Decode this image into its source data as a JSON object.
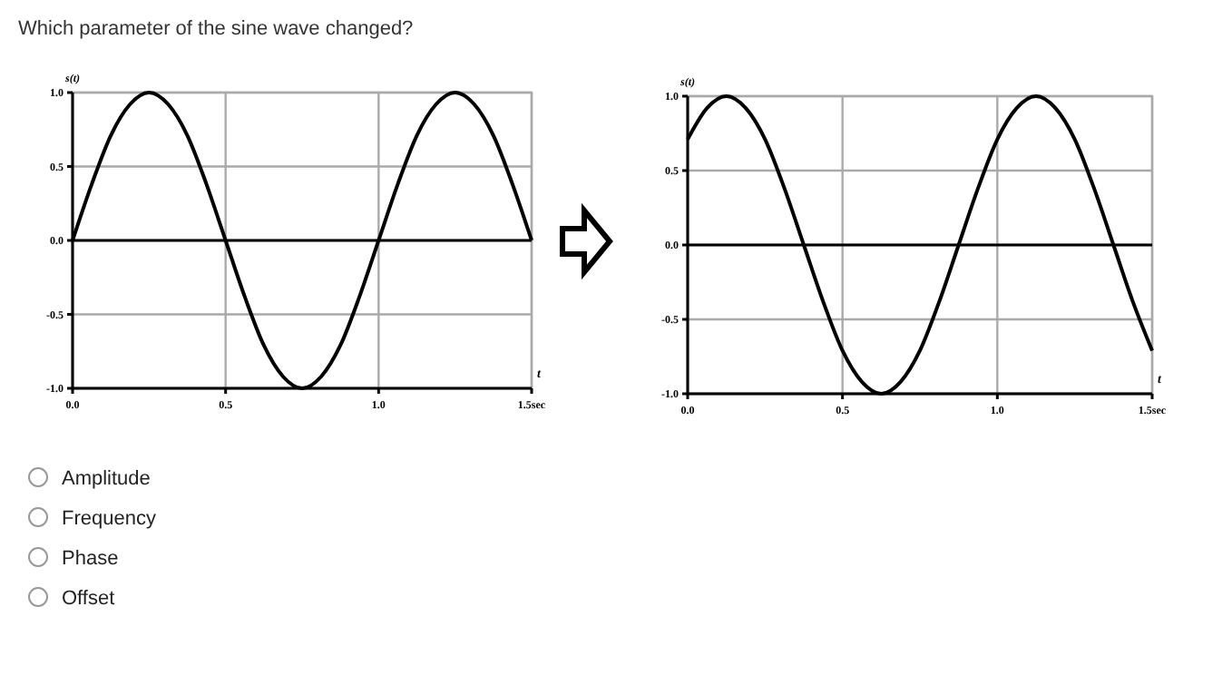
{
  "chart_data": [
    {
      "type": "other",
      "title": "Which parameter of the sine wave changed?",
      "annotations": [
        "Amplitude",
        "Frequency",
        "Phase",
        "Offset"
      ]
    },
    {
      "type": "line",
      "xlabel": "t",
      "ylabel": "s(t)",
      "grid": true,
      "line_style": "solid",
      "marker": "none",
      "xlim": [
        0,
        1.5
      ],
      "xticks": [
        {
          "value": 0,
          "label": "0.0"
        },
        {
          "value": 0.5,
          "label": "0.5"
        },
        {
          "value": 1,
          "label": "1.0"
        },
        {
          "value": 1.5,
          "label": "1.5sec"
        }
      ],
      "ylim": [
        -1,
        1
      ],
      "yticks": [
        {
          "value": -1,
          "label": "-1.0"
        },
        {
          "value": -0.5,
          "label": "-0.5"
        },
        {
          "value": 0,
          "label": "0.0"
        },
        {
          "value": 0.5,
          "label": "0.5"
        },
        {
          "value": 1,
          "label": "1.0"
        }
      ],
      "x": [
        0,
        0.0625,
        0.125,
        0.1875,
        0.25,
        0.3125,
        0.375,
        0.4375,
        0.5,
        0.5625,
        0.625,
        0.6875,
        0.75,
        0.8125,
        0.875,
        0.9375,
        1,
        1.0625,
        1.125,
        1.1875,
        1.25,
        1.3125,
        1.375,
        1.4375,
        1.5
      ],
      "series": [
        {
          "color": "#000000",
          "values": [
            0,
            0.38,
            0.71,
            0.92,
            1,
            0.92,
            0.71,
            0.38,
            0,
            -0.38,
            -0.71,
            -0.92,
            -1,
            -0.92,
            -0.71,
            -0.38,
            0,
            0.38,
            0.71,
            0.92,
            1,
            0.92,
            0.71,
            0.38,
            0
          ]
        }
      ]
    },
    {
      "type": "line",
      "xlabel": "t",
      "ylabel": "s(t)",
      "grid": true,
      "line_style": "solid",
      "marker": "none",
      "xlim": [
        0,
        1.5
      ],
      "xticks": [
        {
          "value": 0,
          "label": "0.0"
        },
        {
          "value": 0.5,
          "label": "0.5"
        },
        {
          "value": 1,
          "label": "1.0"
        },
        {
          "value": 1.5,
          "label": "1.5sec"
        }
      ],
      "ylim": [
        -1,
        1
      ],
      "yticks": [
        {
          "value": -1,
          "label": "-1.0"
        },
        {
          "value": -0.5,
          "label": "-0.5"
        },
        {
          "value": 0,
          "label": "0.0"
        },
        {
          "value": 0.5,
          "label": "0.5"
        },
        {
          "value": 1,
          "label": "1.0"
        }
      ],
      "x": [
        0,
        0.0625,
        0.125,
        0.1875,
        0.25,
        0.3125,
        0.375,
        0.4375,
        0.5,
        0.5625,
        0.625,
        0.6875,
        0.75,
        0.8125,
        0.875,
        0.9375,
        1,
        1.0625,
        1.125,
        1.1875,
        1.25,
        1.3125,
        1.375,
        1.4375,
        1.5
      ],
      "series": [
        {
          "color": "#000000",
          "values": [
            0.71,
            0.92,
            1,
            0.92,
            0.71,
            0.38,
            0,
            -0.38,
            -0.71,
            -0.92,
            -1,
            -0.92,
            -0.71,
            -0.38,
            0,
            0.38,
            0.71,
            0.92,
            1,
            0.92,
            0.71,
            0.38,
            0,
            -0.38,
            -0.71
          ]
        }
      ]
    }
  ]
}
